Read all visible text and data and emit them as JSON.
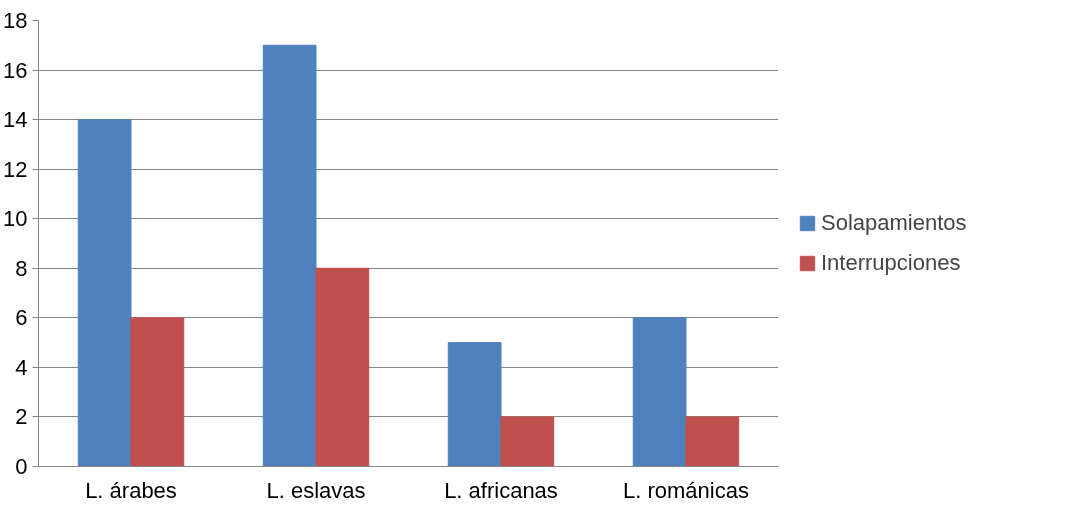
{
  "chart_data": {
    "type": "bar",
    "categories": [
      "L. árabes",
      "L. eslavas",
      "L. africanas",
      "L. románicas"
    ],
    "series": [
      {
        "name": "Solapamientos",
        "color": "#4f81bd",
        "values": [
          14,
          17,
          5,
          6
        ]
      },
      {
        "name": "Interrupciones",
        "color": "#c0504d",
        "values": [
          6,
          8,
          2,
          2
        ]
      }
    ],
    "ylim": [
      0,
      18
    ],
    "yticks": [
      0,
      2,
      4,
      6,
      8,
      10,
      12,
      14,
      16,
      18
    ],
    "grid": "y",
    "legend": "right"
  }
}
